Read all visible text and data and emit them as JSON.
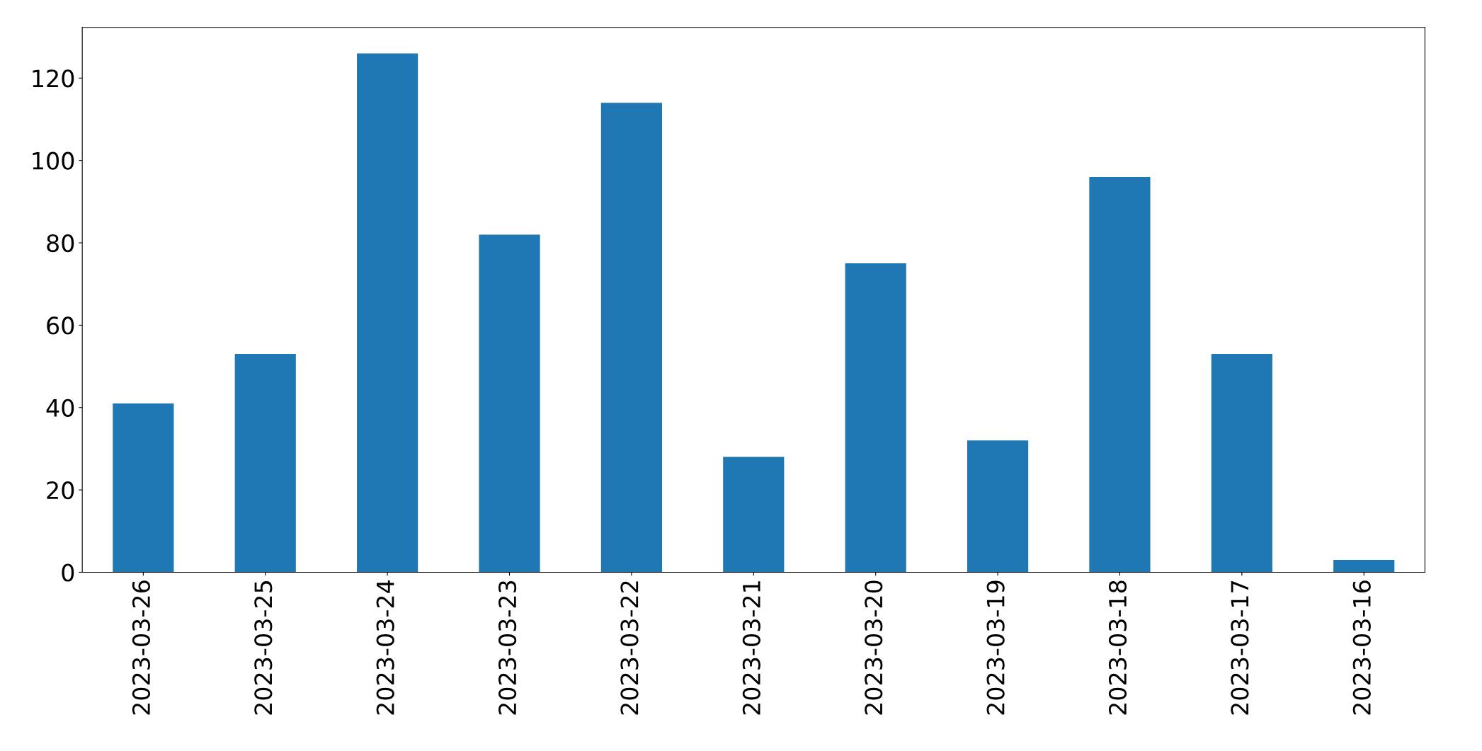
{
  "chart_data": {
    "type": "bar",
    "categories": [
      "2023-03-26",
      "2023-03-25",
      "2023-03-24",
      "2023-03-23",
      "2023-03-22",
      "2023-03-21",
      "2023-03-20",
      "2023-03-19",
      "2023-03-18",
      "2023-03-17",
      "2023-03-16"
    ],
    "values": [
      41,
      53,
      126,
      82,
      114,
      28,
      75,
      32,
      96,
      53,
      3
    ],
    "color": "#1f77b4",
    "ylim": [
      0,
      132.3
    ],
    "yticks": [
      0,
      20,
      40,
      60,
      80,
      100,
      120
    ],
    "grid": false
  }
}
